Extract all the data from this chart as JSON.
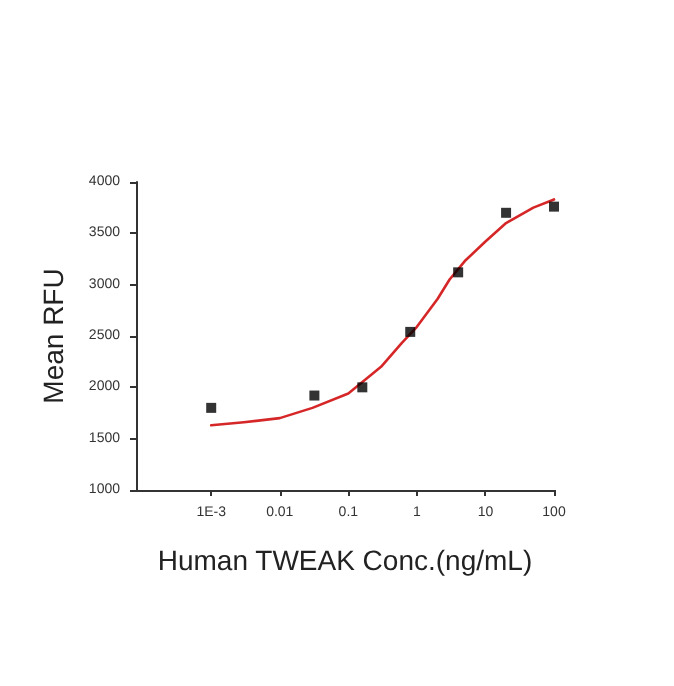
{
  "chart_data": {
    "type": "scatter",
    "xlabel": "Human TWEAK Conc.(ng/mL)",
    "ylabel": "Mean RFU",
    "log": "x",
    "xlim": [
      8e-05,
      100
    ],
    "xticks": [
      {
        "value": 0.001,
        "label": "1E-3"
      },
      0.01,
      0.1,
      1,
      10,
      100
    ],
    "ylim": [
      1000,
      4000
    ],
    "yticks": [
      1000,
      1500,
      2000,
      2500,
      3000,
      3500,
      4000
    ],
    "grid": false,
    "series": [
      {
        "color": "#000000",
        "marker": "square",
        "x": [
          0.001,
          0.032,
          0.16,
          0.8,
          4,
          20,
          100
        ],
        "values": [
          1800,
          1920,
          2000,
          2540,
          3120,
          3700,
          3760
        ]
      },
      {
        "type": "line",
        "color": "#d62728",
        "marker": "none",
        "x": [
          0.001,
          0.003,
          0.01,
          0.03,
          0.1,
          0.3,
          0.6,
          1,
          2,
          3,
          5,
          10,
          20,
          50,
          100
        ],
        "values": [
          1630,
          1660,
          1700,
          1800,
          1940,
          2200,
          2430,
          2590,
          2860,
          3050,
          3230,
          3420,
          3600,
          3750,
          3830
        ]
      }
    ]
  }
}
